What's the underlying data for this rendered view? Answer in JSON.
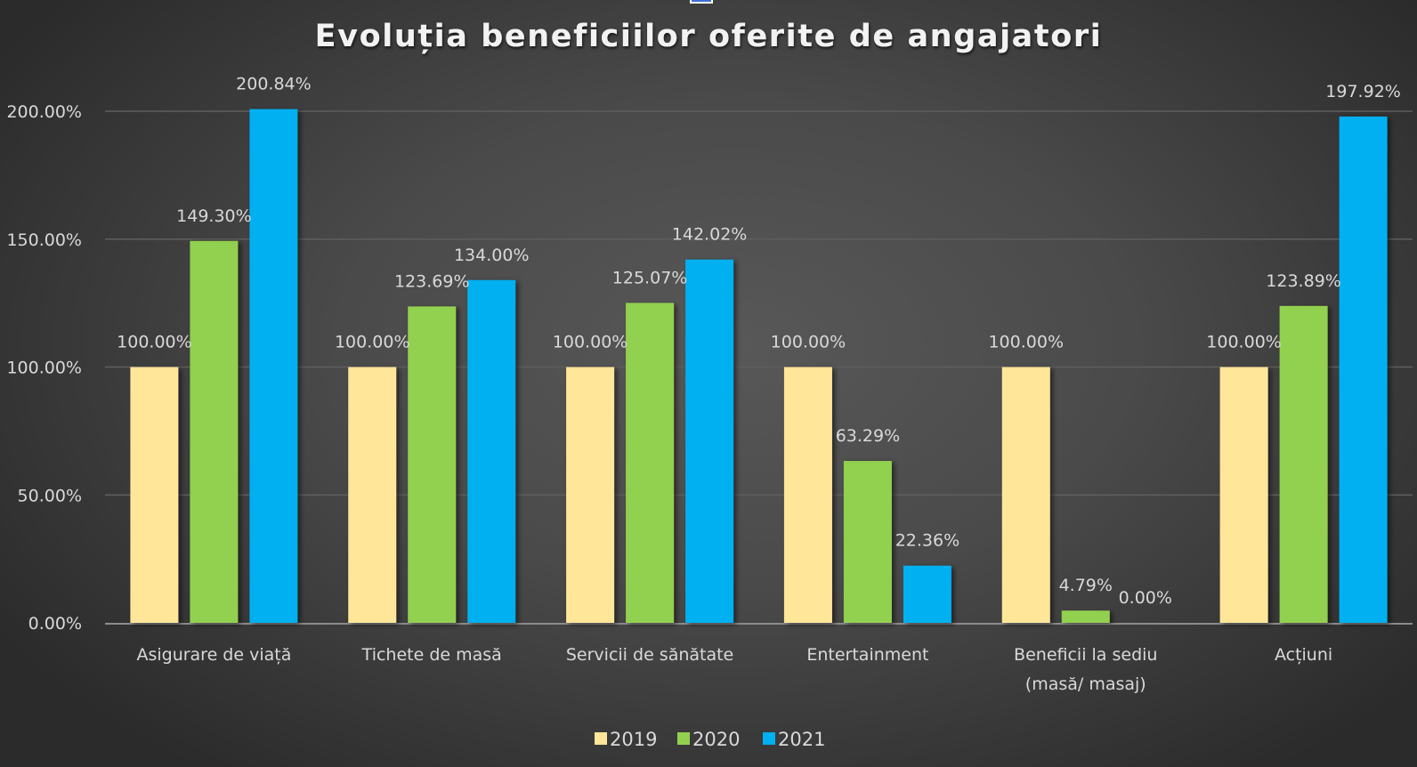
{
  "chart_data": {
    "type": "bar",
    "title": "Evoluția beneficiilor oferite de angajatori",
    "xlabel": "",
    "ylabel": "",
    "ylim": [
      0,
      200
    ],
    "yticks": [
      0,
      50,
      100,
      150,
      200
    ],
    "ytick_labels": [
      "0.00%",
      "50.00%",
      "100.00%",
      "150.00%",
      "200.00%"
    ],
    "grid": true,
    "legend_position": "bottom",
    "categories": [
      [
        "Asigurare de viață"
      ],
      [
        "Tichete de masă"
      ],
      [
        "Servicii de sănătate"
      ],
      [
        "Entertainment"
      ],
      [
        "Beneficii la sediu",
        "(masă/ masaj)"
      ],
      [
        "Acțiuni"
      ]
    ],
    "series": [
      {
        "name": "2019",
        "color": "#FFE699",
        "values": [
          100.0,
          100.0,
          100.0,
          100.0,
          100.0,
          100.0
        ],
        "labels": [
          "100.00%",
          "100.00%",
          "100.00%",
          "100.00%",
          "100.00%",
          "100.00%"
        ]
      },
      {
        "name": "2020",
        "color": "#92D050",
        "values": [
          149.3,
          123.69,
          125.07,
          63.29,
          4.79,
          123.89
        ],
        "labels": [
          "149.30%",
          "123.69%",
          "125.07%",
          "63.29%",
          "4.79%",
          "123.89%"
        ]
      },
      {
        "name": "2021",
        "color": "#00B0F0",
        "values": [
          200.84,
          134.0,
          142.02,
          22.36,
          0.0,
          197.92
        ],
        "labels": [
          "200.84%",
          "134.00%",
          "142.02%",
          "22.36%",
          "0.00%",
          "197.92%"
        ]
      }
    ]
  }
}
